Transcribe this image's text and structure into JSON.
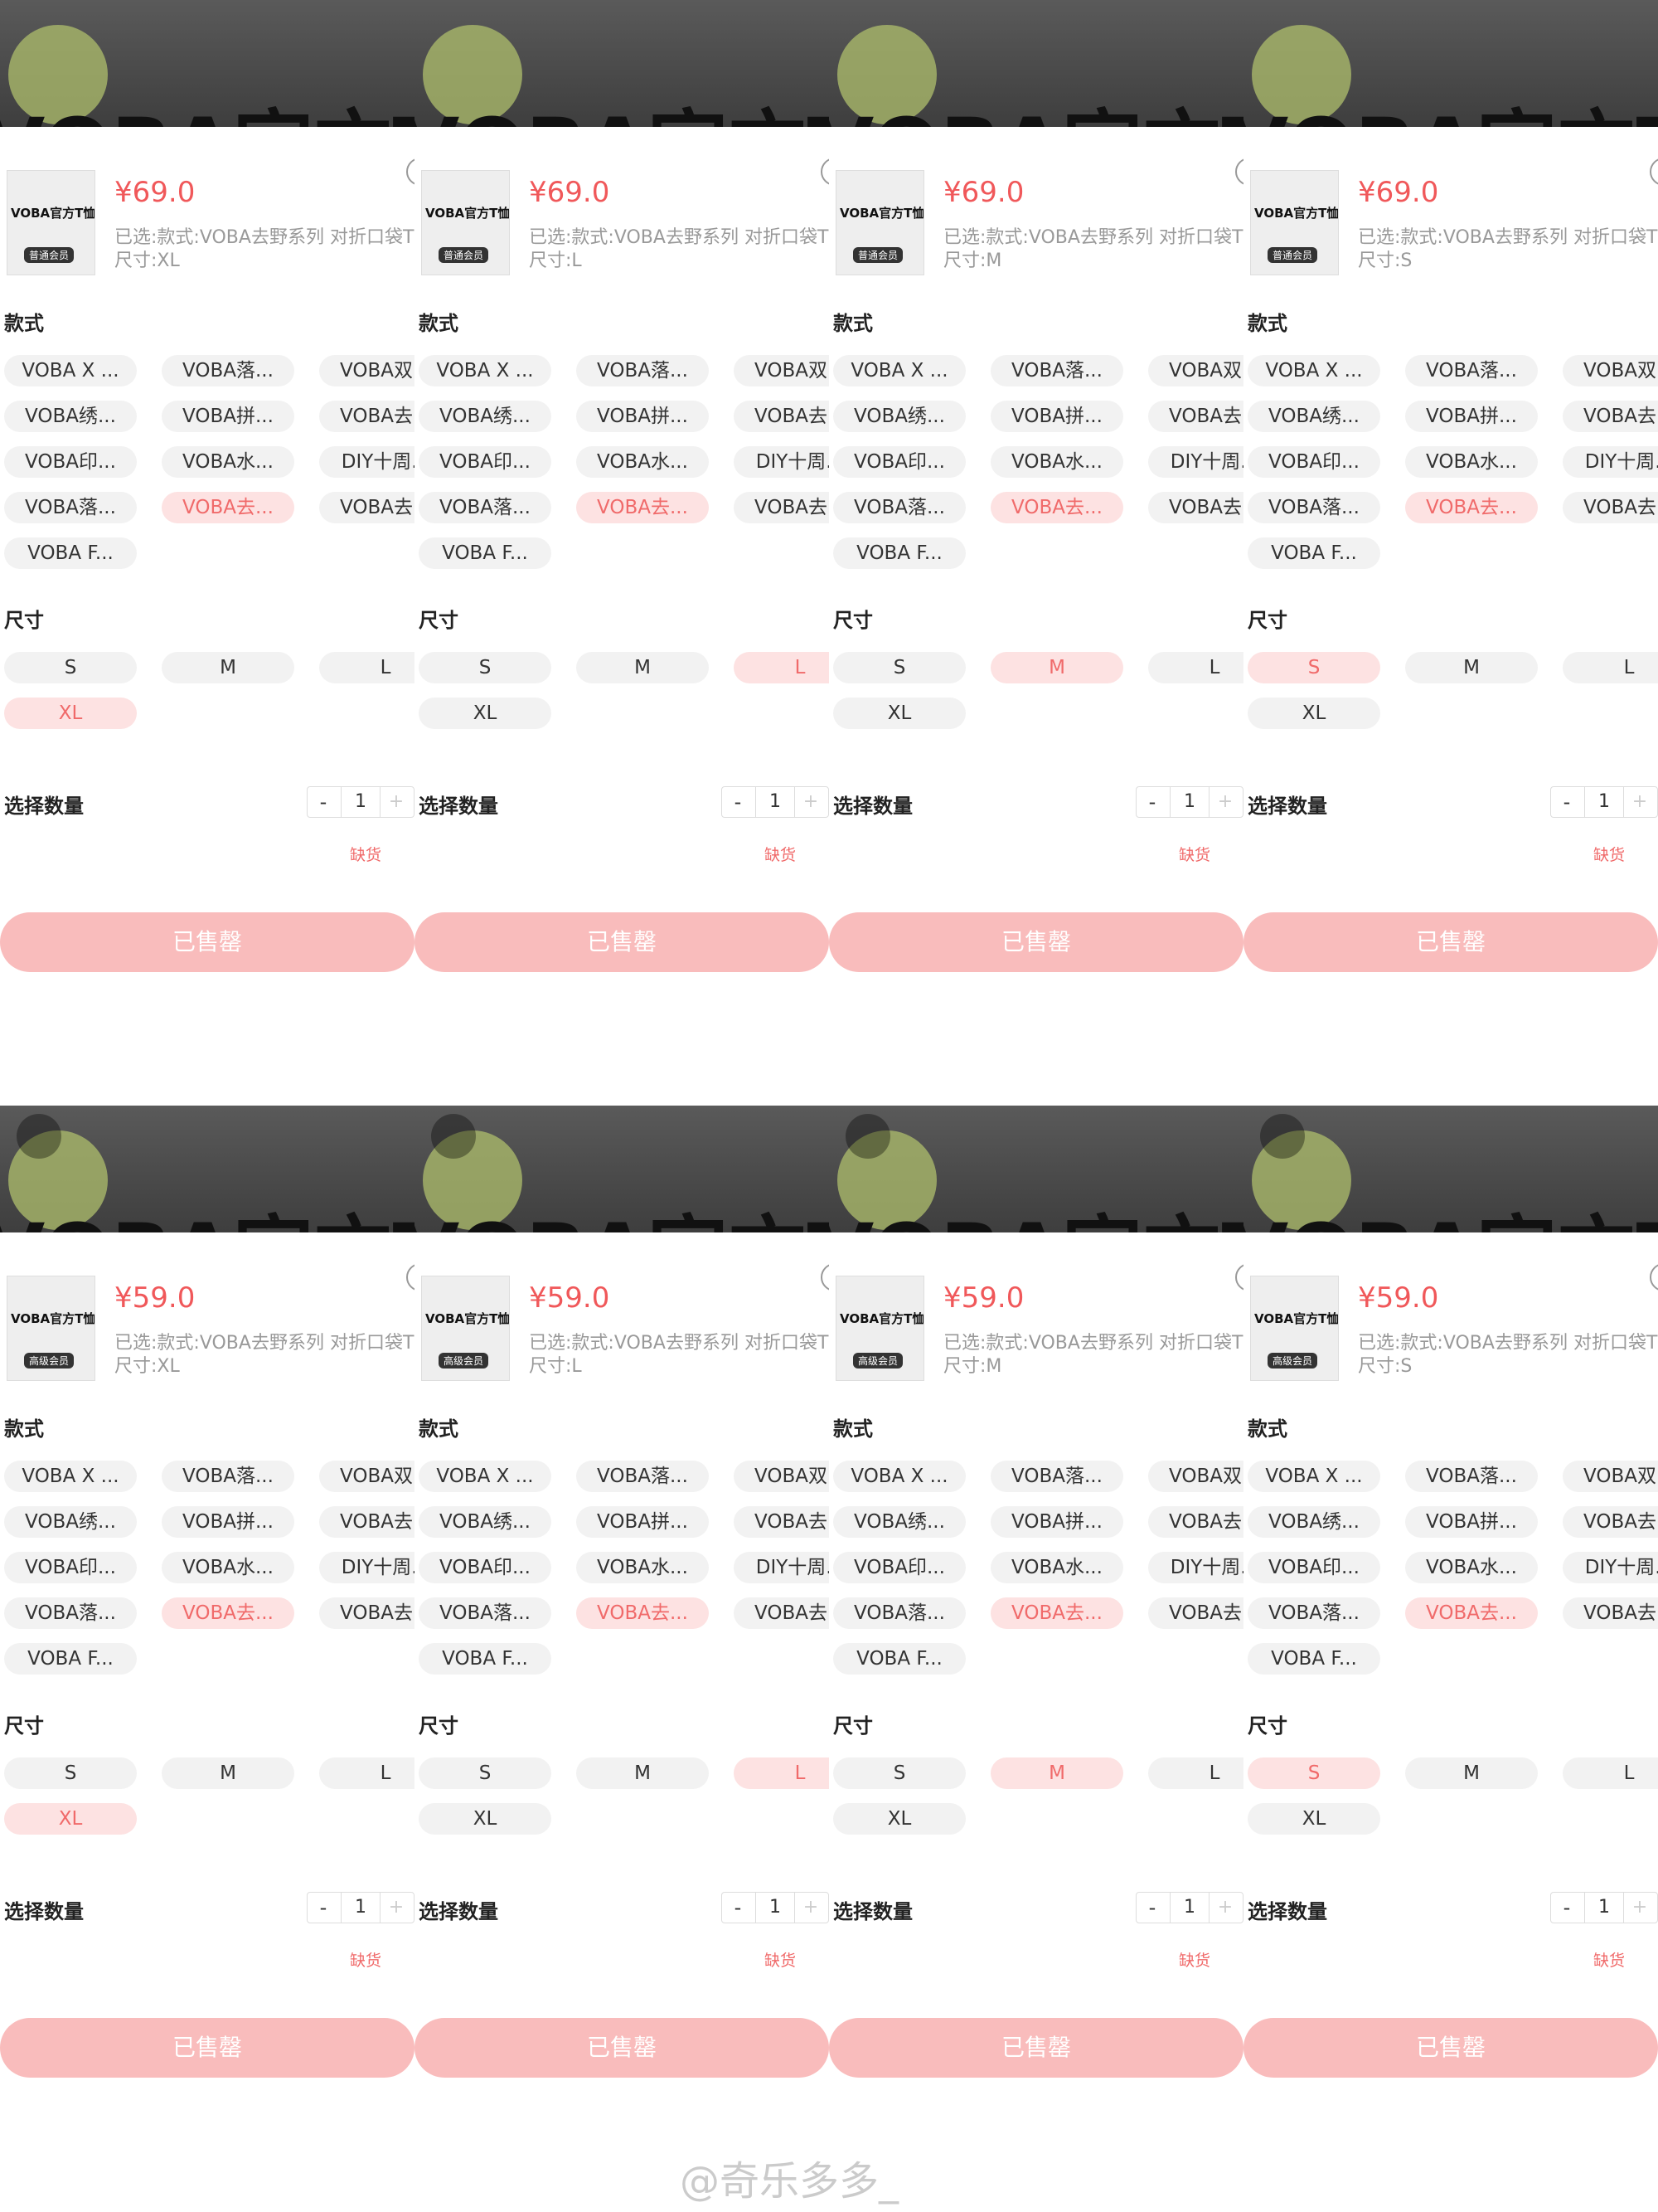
{
  "banner_text": "VOBA官方T恤",
  "thumb_text": "VOBA官方T恤",
  "selected_line": "已选:款式:VOBA去野系列 对折口袋T恤",
  "style_label": "款式",
  "style_options": [
    "VOBA X ...",
    "VOBA落...",
    "VOBA双...",
    "VOBA绣...",
    "VOBA拼...",
    "VOBA去...",
    "VOBA印...",
    "VOBA水...",
    "DIY十周...",
    "VOBA落...",
    "VOBA去...",
    "VOBA去...",
    "VOBA F..."
  ],
  "selected_style_index": 10,
  "size_label": "尺寸",
  "sizes": [
    "S",
    "M",
    "L",
    "XL"
  ],
  "quantity_label": "选择数量",
  "minus": "-",
  "quantity": "1",
  "plus": "+",
  "stock_status": "缺货",
  "button": "已售罄",
  "watermark": "@奇乐多多_",
  "panels": [
    {
      "price": "¥69.0",
      "badge": "普通会员",
      "size_line": "尺寸:XL",
      "selected_size": "XL"
    },
    {
      "price": "¥69.0",
      "badge": "普通会员",
      "size_line": "尺寸:L",
      "selected_size": "L"
    },
    {
      "price": "¥69.0",
      "badge": "普通会员",
      "size_line": "尺寸:M",
      "selected_size": "M"
    },
    {
      "price": "¥69.0",
      "badge": "普通会员",
      "size_line": "尺寸:S",
      "selected_size": "S"
    },
    {
      "price": "¥59.0",
      "badge": "高级会员",
      "size_line": "尺寸:XL",
      "selected_size": "XL"
    },
    {
      "price": "¥59.0",
      "badge": "高级会员",
      "size_line": "尺寸:L",
      "selected_size": "L"
    },
    {
      "price": "¥59.0",
      "badge": "高级会员",
      "size_line": "尺寸:M",
      "selected_size": "M"
    },
    {
      "price": "¥59.0",
      "badge": "高级会员",
      "size_line": "尺寸:S",
      "selected_size": "S"
    }
  ]
}
